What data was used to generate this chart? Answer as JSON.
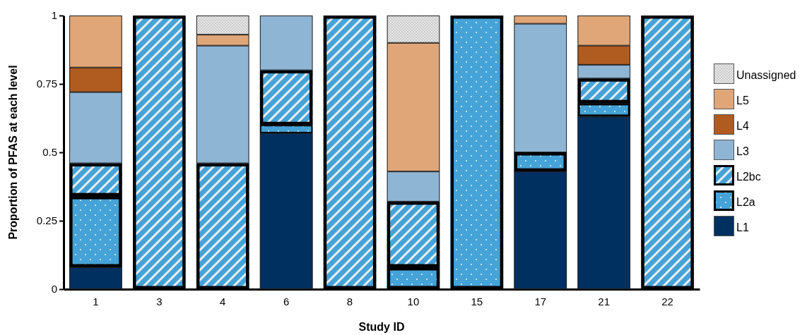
{
  "chart_data": {
    "type": "bar",
    "stacked": true,
    "xlabel": "Study ID",
    "ylabel": "Proportion of PFAS at each level",
    "categories": [
      "1",
      "3",
      "4",
      "6",
      "8",
      "10",
      "15",
      "17",
      "21",
      "22"
    ],
    "series": [
      {
        "name": "L1",
        "color": "#003060",
        "values": [
          0.08,
          null,
          null,
          0.57,
          null,
          null,
          null,
          0.43,
          0.63,
          null
        ]
      },
      {
        "name": "L2a",
        "color": "#45a3d7",
        "values": [
          0.26,
          null,
          null,
          0.03,
          null,
          0.08,
          1,
          0.07,
          0.05,
          null
        ]
      },
      {
        "name": "L2bc",
        "color": "#45a3d7",
        "values": [
          0.12,
          1,
          0.46,
          0.2,
          1,
          0.24,
          null,
          null,
          0.09,
          1
        ]
      },
      {
        "name": "L3",
        "color": "#8fb5d5",
        "values": [
          0.26,
          null,
          0.43,
          0.2,
          null,
          0.11,
          null,
          0.47,
          0.05,
          null
        ]
      },
      {
        "name": "L4",
        "color": "#b05b20",
        "values": [
          0.09,
          null,
          null,
          null,
          null,
          null,
          null,
          null,
          0.07,
          null
        ]
      },
      {
        "name": "L5",
        "color": "#e0a678",
        "values": [
          0.19,
          null,
          0.04,
          null,
          null,
          0.47,
          null,
          0.03,
          0.11,
          null
        ]
      },
      {
        "name": "Unassigned",
        "color": "#e6e6e6",
        "values": [
          null,
          null,
          0.07,
          null,
          null,
          0.1,
          null,
          null,
          null,
          null
        ]
      }
    ],
    "ylim": [
      0,
      1
    ],
    "yticks": [
      0,
      0.25,
      0.5,
      0.75,
      1
    ],
    "grid": false,
    "legend": "right"
  }
}
